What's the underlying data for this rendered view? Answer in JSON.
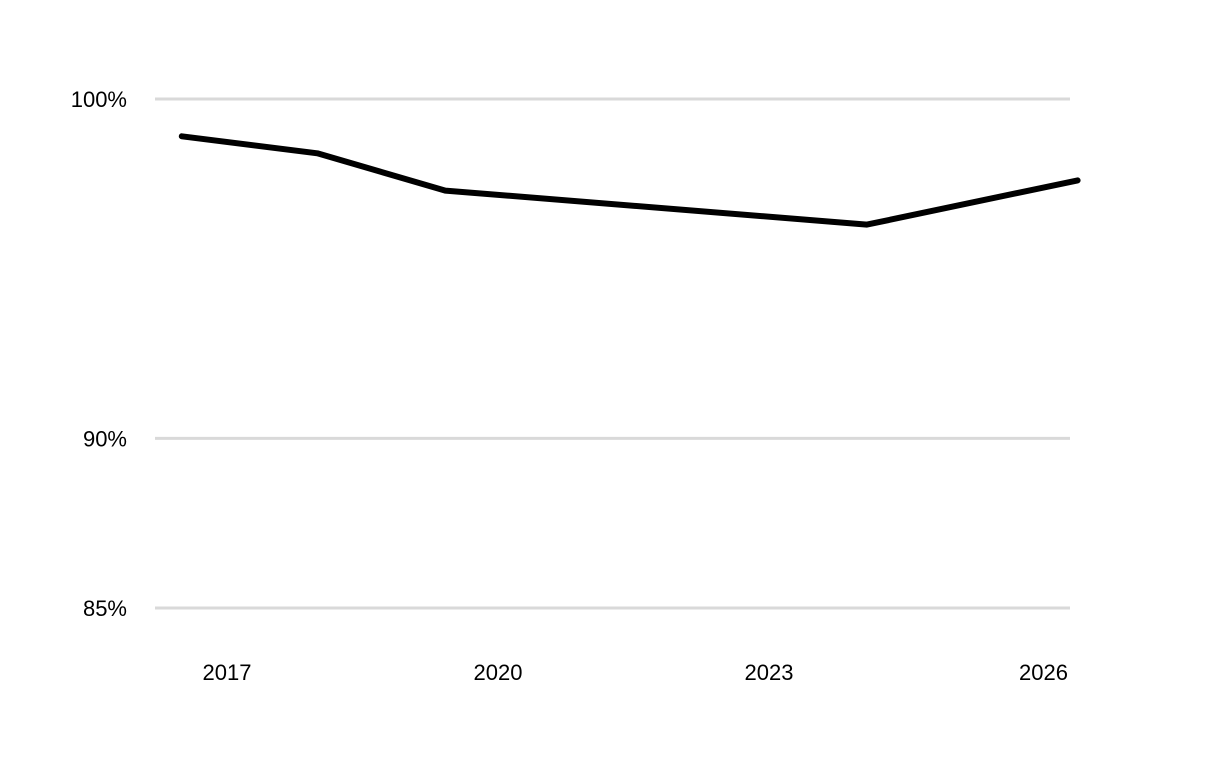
{
  "chart_data": {
    "type": "line",
    "title": "",
    "xlabel": "",
    "ylabel": "",
    "x_ticks": [
      "2017",
      "2020",
      "2023",
      "2026"
    ],
    "y_ticks": [
      {
        "value": 85,
        "label": "85%"
      },
      {
        "value": 90,
        "label": "90%"
      },
      {
        "value": 100,
        "label": "100%"
      }
    ],
    "ylim": [
      85,
      100
    ],
    "xlim": [
      "2016-07-01",
      "2026-12-31"
    ],
    "grid": "horizontal",
    "legend": "none",
    "series": [
      {
        "color": "#000000",
        "points": [
          {
            "x": "2016-07-01",
            "y": 98.9
          },
          {
            "x": "2018-01-01",
            "y": 98.4
          },
          {
            "x": "2019-06-01",
            "y": 97.3
          },
          {
            "x": "2024-02-01",
            "y": 96.3
          },
          {
            "x": "2026-06-01",
            "y": 97.6
          }
        ]
      }
    ]
  }
}
